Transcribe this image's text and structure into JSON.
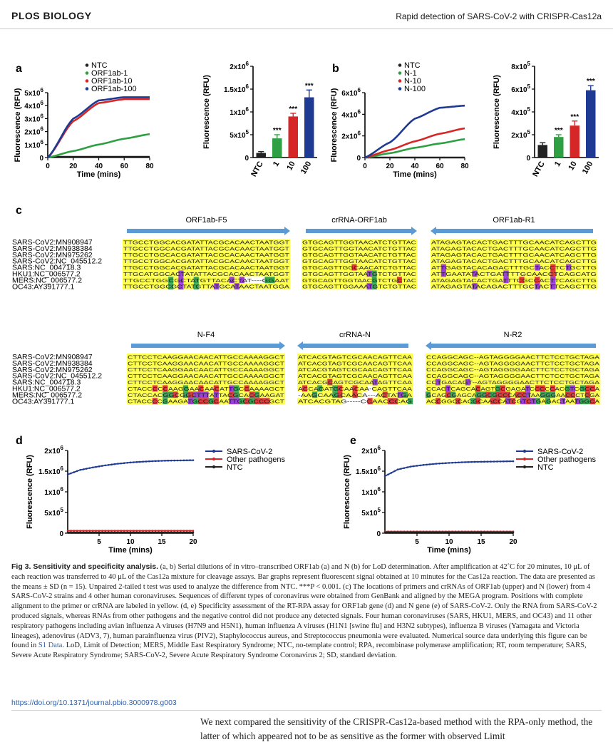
{
  "header": {
    "journal": "PLOS BIOLOGY",
    "running_title": "Rapid detection of SARS-CoV-2 with CRISPR-Cas12a"
  },
  "panels": {
    "a": "a",
    "b": "b",
    "c": "c",
    "d": "d",
    "e": "e"
  },
  "chart_data": [
    {
      "id": "a-line",
      "type": "line",
      "xlabel": "Time (mins)",
      "ylabel": "Fluorescence (RFU)",
      "xlim": [
        0,
        80
      ],
      "ylim": [
        0,
        5000000
      ],
      "x_ticks": [
        "0",
        "20",
        "40",
        "60",
        "80"
      ],
      "y_ticks": [
        "0",
        "1x10",
        "2x10",
        "3x10",
        "4x10",
        "5x10"
      ],
      "y_exp": "6",
      "legend": "top-left",
      "series": [
        {
          "name": "NTC",
          "color": "#222222",
          "x": [
            0,
            20,
            40,
            60,
            80
          ],
          "values": [
            50000,
            50000,
            50000,
            50000,
            50000
          ]
        },
        {
          "name": "ORF1ab-1",
          "color": "#2ea043",
          "x": [
            0,
            20,
            40,
            60,
            80
          ],
          "values": [
            0,
            500000,
            1000000,
            1450000,
            1800000
          ]
        },
        {
          "name": "ORF1ab-10",
          "color": "#d62728",
          "x": [
            0,
            20,
            40,
            60,
            80
          ],
          "values": [
            0,
            2800000,
            4200000,
            4500000,
            4500000
          ]
        },
        {
          "name": "ORF1ab-100",
          "color": "#1f3a93",
          "x": [
            0,
            20,
            40,
            60,
            80
          ],
          "values": [
            0,
            3000000,
            4400000,
            4650000,
            4650000
          ]
        }
      ]
    },
    {
      "id": "a-bar",
      "type": "bar",
      "ylabel": "Fluorescence (RFU)",
      "ylim": [
        0,
        2000000
      ],
      "y_ticks": [
        "0",
        "5x10",
        "1x10",
        "1.5x10",
        "2x10"
      ],
      "y_exp": [
        "",
        "5",
        "6",
        "6",
        "6"
      ],
      "categories": [
        "NTC",
        "1",
        "10",
        "100"
      ],
      "values": [
        100000,
        420000,
        900000,
        1320000
      ],
      "errors": [
        30000,
        80000,
        70000,
        160000
      ],
      "colors": [
        "#222222",
        "#2ea043",
        "#d62728",
        "#1f3a93"
      ],
      "significance": [
        "",
        "***",
        "***",
        "***"
      ]
    },
    {
      "id": "b-line",
      "type": "line",
      "xlabel": "Time (mins)",
      "ylabel": "Fluorescence (RFU)",
      "xlim": [
        0,
        80
      ],
      "ylim": [
        0,
        6000000
      ],
      "x_ticks": [
        "0",
        "20",
        "40",
        "60",
        "80"
      ],
      "y_ticks": [
        "0",
        "2x10",
        "4x10",
        "6x10"
      ],
      "y_exp": "6",
      "legend": "top-left",
      "series": [
        {
          "name": "NTC",
          "color": "#222222",
          "x": [
            0,
            20,
            40,
            60,
            80
          ],
          "values": [
            0,
            0,
            0,
            0,
            0
          ]
        },
        {
          "name": "N-1",
          "color": "#2ea043",
          "x": [
            0,
            20,
            40,
            60,
            80
          ],
          "values": [
            0,
            400000,
            900000,
            1300000,
            1700000
          ]
        },
        {
          "name": "N-10",
          "color": "#d62728",
          "x": [
            0,
            20,
            40,
            60,
            80
          ],
          "values": [
            0,
            700000,
            1500000,
            2200000,
            2700000
          ]
        },
        {
          "name": "N-100",
          "color": "#1f3a93",
          "x": [
            0,
            20,
            40,
            60,
            80
          ],
          "values": [
            0,
            1400000,
            3600000,
            4600000,
            4800000
          ]
        }
      ]
    },
    {
      "id": "b-bar",
      "type": "bar",
      "ylabel": "Fluorescence (RFU)",
      "ylim": [
        0,
        800000
      ],
      "y_ticks": [
        "0",
        "2x10",
        "4x10",
        "6x10",
        "8x10"
      ],
      "y_exp": [
        "",
        "5",
        "5",
        "5",
        "5"
      ],
      "categories": [
        "NTC",
        "1",
        "10",
        "100"
      ],
      "values": [
        110000,
        180000,
        280000,
        590000
      ],
      "errors": [
        20000,
        20000,
        40000,
        40000
      ],
      "colors": [
        "#222222",
        "#2ea043",
        "#d62728",
        "#1f3a93"
      ],
      "significance": [
        "",
        "***",
        "***",
        "***"
      ]
    },
    {
      "id": "d-line",
      "type": "line",
      "xlabel": "Time (mins)",
      "ylabel": "Fluorescence (RFU)",
      "xlim": [
        0,
        20
      ],
      "ylim": [
        0,
        2000000
      ],
      "x_ticks": [
        "5",
        "10",
        "15",
        "20"
      ],
      "y_ticks": [
        "0",
        "5x10",
        "1x10",
        "1.5x10",
        "2x10"
      ],
      "y_exp": [
        "",
        "5",
        "6",
        "6",
        "6"
      ],
      "legend": "top-right",
      "series": [
        {
          "name": "SARS-CoV-2",
          "color": "#1f3a93",
          "x": [
            0,
            2,
            4,
            6,
            8,
            10,
            12,
            14,
            16,
            18,
            20
          ],
          "values": [
            1420000,
            1530000,
            1590000,
            1640000,
            1680000,
            1710000,
            1730000,
            1745000,
            1755000,
            1760000,
            1765000
          ]
        },
        {
          "name": "Other pathogens",
          "color": "#d62728",
          "x": [
            0,
            20
          ],
          "values": [
            60000,
            60000
          ]
        },
        {
          "name": "NTC",
          "color": "#222222",
          "x": [
            0,
            20
          ],
          "values": [
            20000,
            20000
          ]
        }
      ]
    },
    {
      "id": "e-line",
      "type": "line",
      "xlabel": "Time (mins)",
      "ylabel": "Fluorescence (RFU)",
      "xlim": [
        0,
        20
      ],
      "ylim": [
        0,
        2000000
      ],
      "x_ticks": [
        "5",
        "10",
        "15",
        "20"
      ],
      "y_ticks": [
        "0",
        "5x10",
        "1x10",
        "1.5x10",
        "2x10"
      ],
      "y_exp": [
        "",
        "5",
        "6",
        "6",
        "6"
      ],
      "legend": "top-right",
      "series": [
        {
          "name": "SARS-CoV-2",
          "color": "#1f3a93",
          "x": [
            0,
            2,
            4,
            6,
            8,
            10,
            12,
            14,
            16,
            18,
            20
          ],
          "values": [
            1380000,
            1540000,
            1610000,
            1650000,
            1680000,
            1700000,
            1715000,
            1725000,
            1730000,
            1735000,
            1740000
          ]
        },
        {
          "name": "Other pathogens",
          "color": "#d62728",
          "x": [
            0,
            20
          ],
          "values": [
            40000,
            40000
          ]
        },
        {
          "name": "NTC",
          "color": "#222222",
          "x": [
            0,
            20
          ],
          "values": [
            20000,
            20000
          ]
        }
      ]
    }
  ],
  "alignment": {
    "strain_labels": [
      "SARS-CoV2:MN908947",
      "SARS-CoV2:MN938384",
      "SARS-CoV2:MN975262",
      "SARS-CoV2:NC_045512.2",
      "SARS:NC_004718.3",
      "HKU1:NC_006577.2",
      "MERS:NC_006577.2",
      "OC43:AY391777.1"
    ],
    "orf_row": [
      {
        "name": "ORF1ab-F5",
        "dir": "right",
        "seqs": [
          "TTGCCTGGCACGATATTACGCACAACTAATGGT",
          "TTGCCTGGCACGATATTACGCACAACTAATGGT",
          "TTGCCTGGCACGATATTACGCACAACTAATGGT",
          "TTGCCTGGCACGATATTACGCACAACTAATGGT",
          "TTGCCTGGCACGATATTACGCACAACTAATGGT",
          "TTGCATGGCACTATATTACGCACAACTAATGGT",
          "TTGCCTGGCGCTATGTTACACTAT----GGAAT",
          "TTGCCTGGCGCTATGTTATGCATAACTAATGGA"
        ]
      },
      {
        "name": "crRNA-ORF1ab",
        "dir": "right",
        "seqs": [
          "GTGCAGTTGGTAACATCTGTTAC",
          "GTGCAGTTGGTAACATCTGTTAC",
          "GTGCAGTTGGTAACATCTGTTAC",
          "GTGCAGTTGGTAACATCTGTTAC",
          "GTGCAGTTGGCAACATCTGTTAC",
          "GTGCAGTTGGTAATGTCTGTTAC",
          "GTGCAGTTGGTAACGTCTGCTAC",
          "GTGCAGTTGGAAATGTCTGTTAC"
        ]
      },
      {
        "name": "ORF1ab-R1",
        "dir": "left",
        "seqs": [
          "ATAGAGTACACTGACTTTGCAACATCAGCTTG",
          "ATAGAGTACACTGACTTTGCAACATCAGCTTG",
          "ATAGAGTACACTGACTTTGCAACATCAGCTTG",
          "ATAGAGTACACTGACTTTGCAACATCAGCTTG",
          "ATTGAGTACACAGACTTTGCTACCTCTGCTTG",
          "ATTGAATATACTGATTTTGCAACCTCAGCATG",
          "ATAGAGTACACTGATTTCGCCACTTCAGCTTG",
          "ATAGAGTATACAGACTTTGCTACTTCAGCTTG"
        ]
      }
    ],
    "n_row": [
      {
        "name": "N-F4",
        "dir": "right",
        "seqs": [
          "CTTCCTCAAGGAACAACATTGCCAAAAGGCT",
          "CTTCCTCAAGGAACAACATTGCCAAAAGGCT",
          "CTTCCTCAAGGAACAACATTGCCAAAAGGCT",
          "CTTCCTCAAGGAACAACATTGCCAAAAGGCT",
          "CTTCCTCAAGGAACAACATTGCCAAAAGGCT",
          "CTACCCCCAAGGAACAACATTGCCAAAAGCT",
          "CTACCACGGCGGCTTTATTACGCACGAAGAT",
          "CTACCCCGAAGATGCCGCAATTGCGCCCGCT"
        ]
      },
      {
        "name": "crRNA-N",
        "dir": "left",
        "seqs": [
          "ATCACGTAGTCGCAACAGTTCAA",
          "ATCACGTAGTCGCAACAGTTCAA",
          "ATCACGTAGTCGCAACAGTTCAA",
          "ATCACGTAGTCGCAACAGTTCAA",
          "ATCACGCAGTCGCAATAGTTCAA",
          "ACCAGATGCAACAA-CAGTTCAA",
          "-AAGCAAGCAACA---ACTATGA",
          "ATCACGTAG-----CCAACCCAG"
        ]
      },
      {
        "name": "N-R2",
        "dir": "left",
        "seqs": [
          "CCAGGCAGC--AGTAGGGGAACTTCTCCTGCTAGA",
          "CCAGGCAGC--AGTAGGGGAACTTCTCCTGCTAGA",
          "CCAGGCAGC--AGTAGGGGAACTTCTCCTGCTAGA",
          "CCAGGCAGC--AGTAGGGGAACTTCTCCTGCTAGA",
          "CCTGACAGT--AGTAGGGGAACTTCTCCTGCTAGA",
          "CCAGTCAGCACAGTGCGAGATCCCCCACGTCGCCA",
          "GCAGCGAGCAGGCGCCCACCTAAGGGAACCCTCGA",
          "ACCGGCCACGCAACCATCGTCTGAGACTAATGGCA"
        ]
      }
    ]
  },
  "caption": {
    "title": "Fig 3. Sensitivity and specificity analysis.",
    "body": "(a, b) Serial dilutions of in vitro–transcribed ORF1ab (a) and N (b) for LoD determination. After amplification at 42˚C for 20 minutes, 10 μL of each reaction was transferred to 40 μL of the Cas12a mixture for cleavage assays. Bar graphs represent fluorescent signal obtained at 10 minutes for the Cas12a reaction. The data are presented as the means ± SD (n = 15). Unpaired 2-tailed t test was used to analyze the difference from NTC. ***P < 0.001. (c) The locations of primers and crRNAs of ORF1ab (upper) and N (lower) from 4 SARS-CoV-2 strains and 4 other human coronaviruses. Sequences of different types of coronavirus were obtained from GenBank and aligned by the MEGA program. Positions with complete alignment to the primer or crRNA are labeled in yellow. (d, e) Specificity assessment of the RT-RPA assay for ORF1ab gene (d) and N gene (e) of SARS-CoV-2. Only the RNA from SARS-CoV-2 produced signals, whereas RNAs from other pathogens and the negative control did not produce any detected signals. Four human coronaviruses (SARS, HKU1, MERS, and OC43) and 11 other respiratory pathogens including avian influenza A viruses (H7N9 and H5N1), human influenza A viruses (H1N1 [swine flu] and H3N2 subtypes), influenza B viruses (Yamagata and Victoria lineages), adenovirus (ADV3, 7), human parainfluenza virus (PIV2), Staphylococcus aureus, and Streptococcus pneumonia were evaluated. Numerical source data underlying this figure can be found in",
    "link": "S1 Data",
    "tail": ". LoD, Limit of Detection; MERS, Middle East Respiratory Syndrome; NTC, no-template control; RPA, recombinase polymerase amplification; RT, room temperature; SARS, Severe Acute Respiratory Syndrome; SARS-CoV-2, Severe Acute Respiratory Syndrome Coronavirus 2; SD, standard deviation."
  },
  "doi": "https://doi.org/10.1371/journal.pbio.3000978.g003",
  "body_text": "We next compared the sensitivity of the CRISPR-Cas12a-based method with the RPA-only method, the latter of which appeared not to be as sensitive as the former with observed Limit",
  "colors": {
    "A": "#ffff4d",
    "T": "#9b3fd6",
    "G": "#3aa655",
    "C": "#e03b3b",
    "-": "#ffffff",
    "match": "#ffff4d",
    "arrow": "#5b9bd5"
  }
}
